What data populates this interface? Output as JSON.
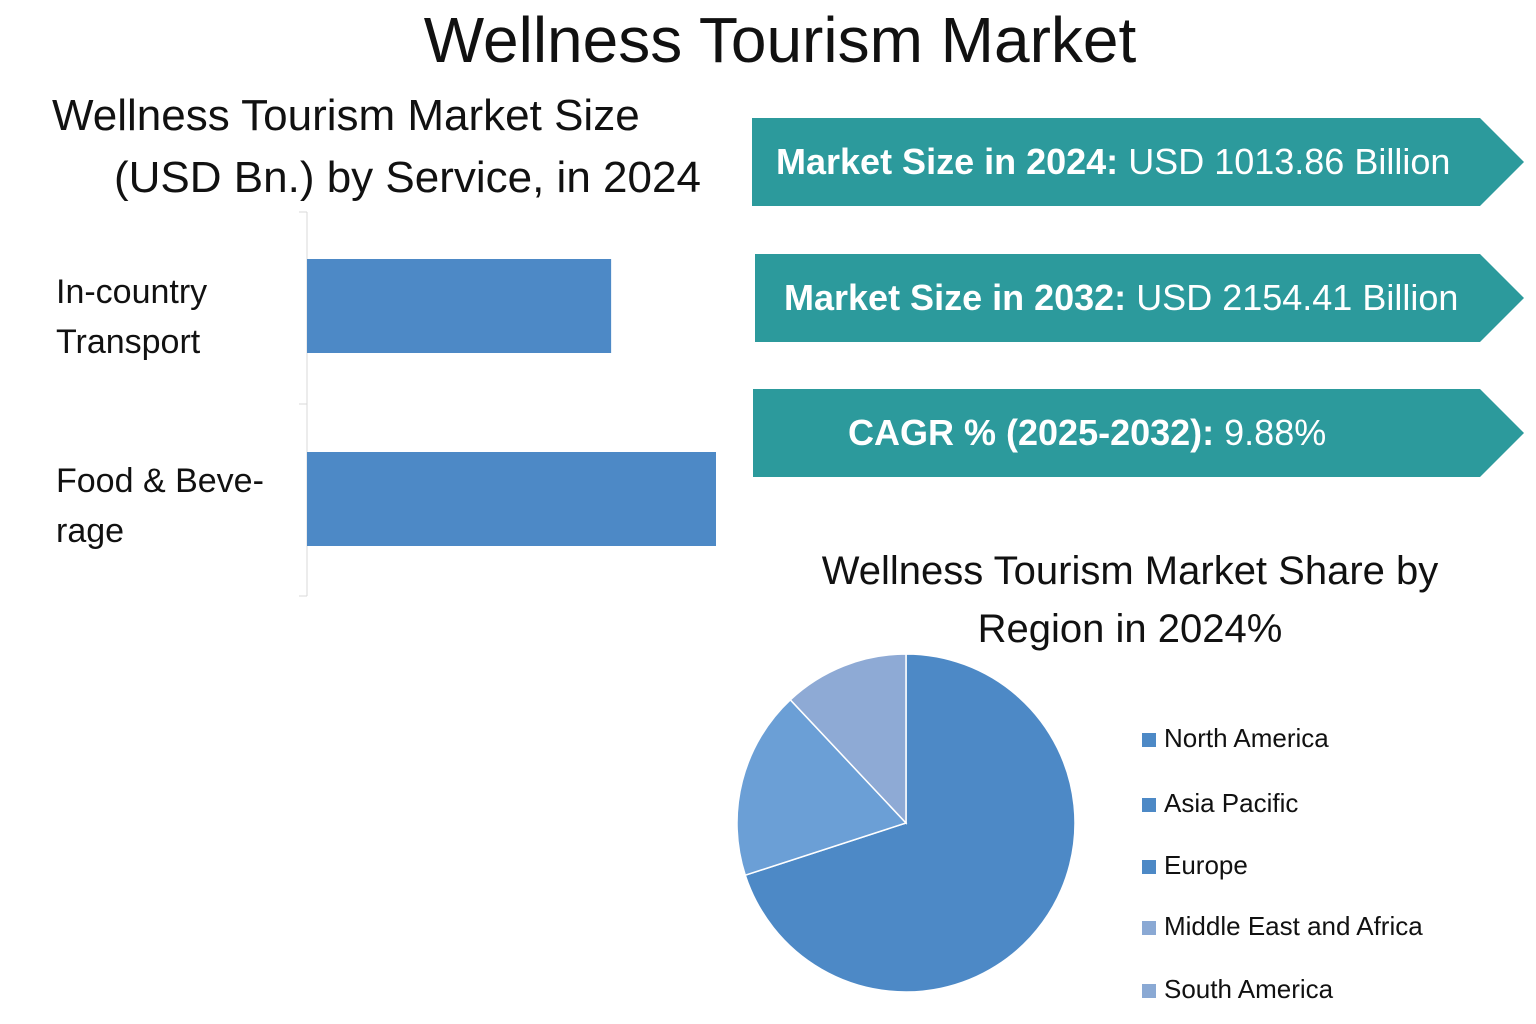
{
  "title": "Wellness Tourism Market",
  "bar_panel": {
    "title_line1": "Wellness Tourism Market Size",
    "title_line2": "(USD Bn.) by Service, in 2024"
  },
  "banners": [
    {
      "label": "Market Size in 2024:",
      "value": "USD 1013.86 Billion"
    },
    {
      "label": "Market Size in 2032:",
      "value": "USD 2154.41 Billion"
    },
    {
      "label": "CAGR % (2025-2032):",
      "value": "9.88%"
    }
  ],
  "pie_panel": {
    "title_line1": "Wellness Tourism Market Share by",
    "title_line2": "Region in 2024%"
  },
  "colors": {
    "banner": "#2c9a9c",
    "bar": "#4d89c6",
    "north_america": "#4d89c6",
    "asia_pacific": "#4d89c6",
    "europe": "#4d89c6",
    "middle_east_africa": "#8aa9d4",
    "south_america": "#8aa9d4"
  },
  "chart_data": [
    {
      "type": "bar",
      "orientation": "horizontal",
      "categories": [
        "In-country Transport",
        "Food & Beverage"
      ],
      "category_labels": [
        [
          "In-country",
          "Transport"
        ],
        [
          "Food & Beve-",
          "rage"
        ]
      ],
      "values": [
        290,
        390
      ],
      "xlim": [
        0,
        400
      ],
      "grid": false
    },
    {
      "type": "pie",
      "legend_position": "right",
      "categories": [
        "North America",
        "Asia Pacific",
        "Europe",
        "Middle East and Africa",
        "South America"
      ],
      "values": [
        70,
        18,
        12,
        0,
        0
      ]
    }
  ]
}
